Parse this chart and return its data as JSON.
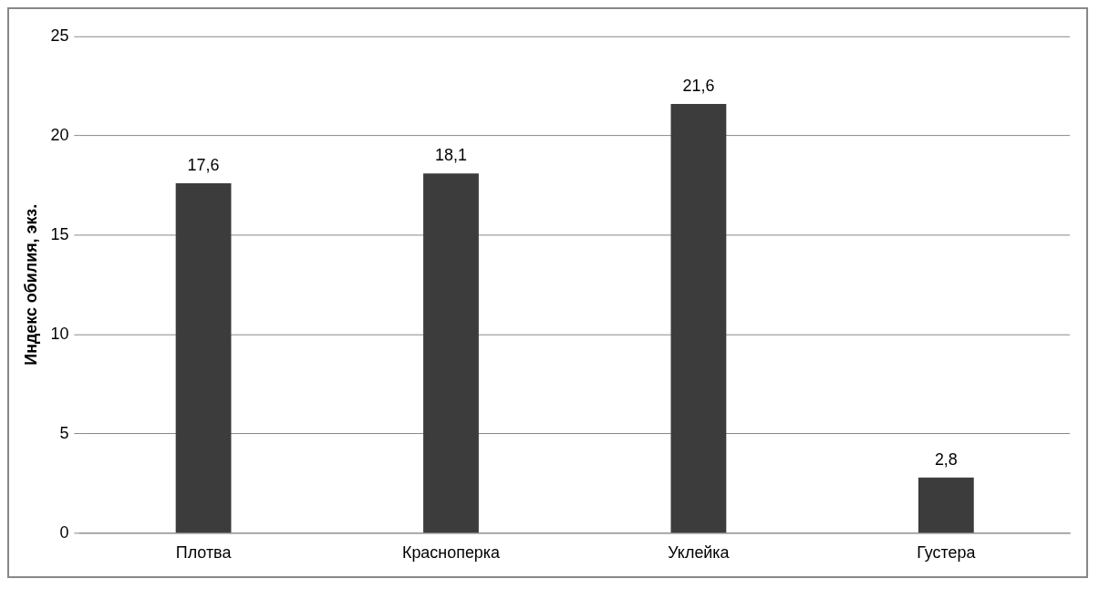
{
  "chart_data": {
    "type": "bar",
    "ylabel": "Индекс обилия, экз.",
    "categories": [
      "Плотва",
      "Красноперка",
      "Уклейка",
      "Густера"
    ],
    "values": [
      17.6,
      18.1,
      21.6,
      2.8
    ],
    "value_labels": [
      "17,6",
      "18,1",
      "21,6",
      "2,8"
    ],
    "color": "#3c3c3c",
    "ylim": [
      0,
      25
    ],
    "yticks": [
      0,
      5,
      10,
      15,
      20,
      25
    ],
    "grid": "y",
    "legend": false
  }
}
